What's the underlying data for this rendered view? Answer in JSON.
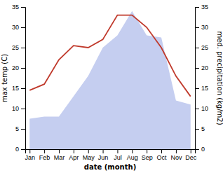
{
  "chart_data": {
    "type": "line",
    "xlabel": "date (month)",
    "ylabel": "max temp (C)",
    "y2label": "med. precipitation (kg/m2)",
    "categories": [
      "Jan",
      "Feb",
      "Mar",
      "Apr",
      "May",
      "Jun",
      "Jul",
      "Aug",
      "Sep",
      "Oct",
      "Nov",
      "Dec"
    ],
    "series": [
      {
        "type": "area",
        "axis": "y2",
        "color": "#c5cef0",
        "values": [
          7.5,
          8.0,
          8.0,
          13.0,
          18.0,
          25.0,
          28.0,
          34.0,
          28.0,
          27.5,
          12.0,
          11.0
        ]
      },
      {
        "type": "line",
        "color": "#c0392b",
        "values": [
          14.5,
          16.0,
          22.0,
          25.5,
          25.0,
          27.0,
          33.0,
          33.0,
          30.0,
          25.0,
          18.0,
          13.0
        ]
      }
    ],
    "ylim": [
      0,
      35
    ],
    "yticks": [
      0,
      5,
      10,
      15,
      20,
      25,
      30,
      35
    ],
    "y2lim": [
      0,
      35
    ],
    "y2ticks": [
      0,
      5,
      10,
      15,
      20,
      25,
      30,
      35
    ],
    "grid": false
  }
}
